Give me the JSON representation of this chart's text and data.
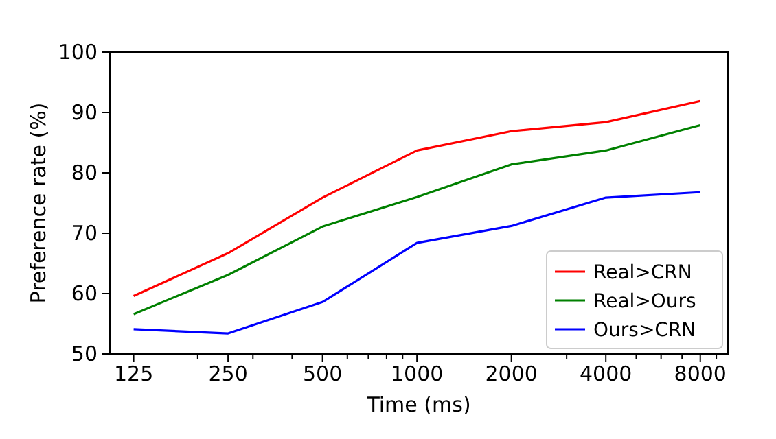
{
  "chart_data": {
    "type": "line",
    "xlabel": "Time (ms)",
    "ylabel": "Preference rate (%)",
    "x": [
      125,
      250,
      500,
      1000,
      2000,
      4000,
      8000
    ],
    "log": "x",
    "xlim": [
      105,
      9800
    ],
    "xticks": [
      125,
      250,
      500,
      1000,
      2000,
      4000,
      8000,
      {
        "value": 200,
        "label": null
      },
      {
        "value": 300,
        "label": null
      },
      {
        "value": 400,
        "label": null
      },
      {
        "value": 600,
        "label": null
      },
      {
        "value": 700,
        "label": null
      },
      {
        "value": 800,
        "label": null
      },
      {
        "value": 900,
        "label": null
      },
      {
        "value": 3000,
        "label": null
      },
      {
        "value": 5000,
        "label": null
      },
      {
        "value": 6000,
        "label": null
      },
      {
        "value": 7000,
        "label": null
      },
      {
        "value": 9000,
        "label": null
      }
    ],
    "ylim": [
      50,
      100
    ],
    "yticks": [
      50,
      60,
      70,
      80,
      90,
      100
    ],
    "grid": false,
    "legend": "bottom right",
    "marker": "none",
    "line_style": "solid",
    "series": [
      {
        "name": "Real>CRN",
        "color": "#ff0000",
        "values": [
          59.6,
          66.7,
          75.9,
          83.7,
          86.9,
          88.4,
          91.9
        ]
      },
      {
        "name": "Real>Ours",
        "color": "#008000",
        "values": [
          56.6,
          63.1,
          71.1,
          76.0,
          81.4,
          83.7,
          87.9
        ]
      },
      {
        "name": "Ours>CRN",
        "color": "#0000ff",
        "values": [
          54.1,
          53.4,
          58.6,
          68.4,
          71.2,
          75.9,
          76.8
        ]
      }
    ]
  }
}
